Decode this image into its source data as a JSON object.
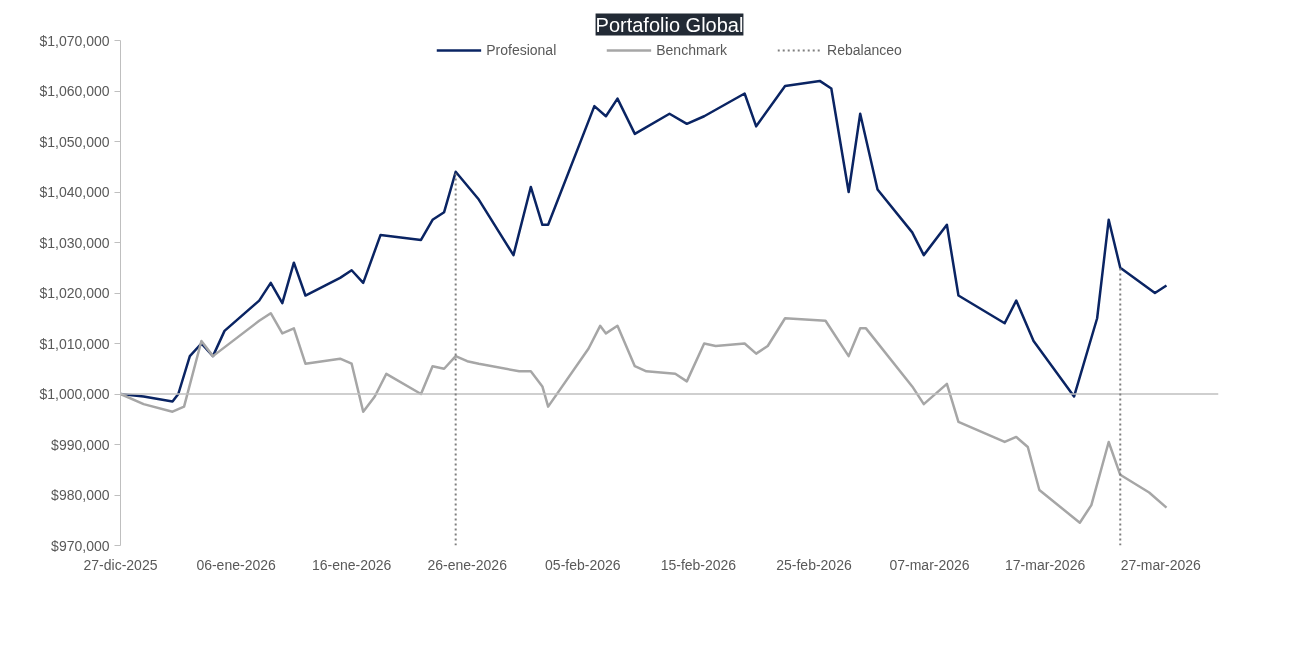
{
  "chart_data": {
    "type": "line",
    "title": "Portafolio Global",
    "xlim": [
      "2025-12-27",
      "2026-04-01"
    ],
    "xticks": [
      {
        "value": "2025-12-27",
        "label": "27-dic-2025"
      },
      {
        "value": "2026-01-06",
        "label": "06-ene-2026"
      },
      {
        "value": "2026-01-16",
        "label": "16-ene-2026"
      },
      {
        "value": "2026-01-26",
        "label": "26-ene-2026"
      },
      {
        "value": "2026-02-05",
        "label": "05-feb-2026"
      },
      {
        "value": "2026-02-15",
        "label": "15-feb-2026"
      },
      {
        "value": "2026-02-25",
        "label": "25-feb-2026"
      },
      {
        "value": "2026-03-07",
        "label": "07-mar-2026"
      },
      {
        "value": "2026-03-17",
        "label": "17-mar-2026"
      },
      {
        "value": "2026-03-27",
        "label": "27-mar-2026"
      }
    ],
    "ylim": [
      970000,
      1070000
    ],
    "yticks": [
      {
        "value": 970000,
        "label": "$970,000"
      },
      {
        "value": 980000,
        "label": "$980,000"
      },
      {
        "value": 990000,
        "label": "$990,000"
      },
      {
        "value": 1000000,
        "label": "$1,000,000"
      },
      {
        "value": 1010000,
        "label": "$1,010,000"
      },
      {
        "value": 1020000,
        "label": "$1,020,000"
      },
      {
        "value": 1030000,
        "label": "$1,030,000"
      },
      {
        "value": 1040000,
        "label": "$1,040,000"
      },
      {
        "value": 1050000,
        "label": "$1,050,000"
      },
      {
        "value": 1060000,
        "label": "$1,060,000"
      },
      {
        "value": 1070000,
        "label": "$1,070,000"
      }
    ],
    "grid": false,
    "legend": "top",
    "marker": "none",
    "line_style": "solid",
    "series": [
      {
        "name": "Profesional",
        "color": "#0a2463",
        "x": [
          "2025-12-27",
          "2025-12-29",
          "2025-12-31T12:00",
          "2026-01-01",
          "2026-01-02",
          "2026-01-03",
          "2026-01-04",
          "2026-01-05",
          "2026-01-08",
          "2026-01-09",
          "2026-01-10",
          "2026-01-11",
          "2026-01-12",
          "2026-01-15",
          "2026-01-16",
          "2026-01-17",
          "2026-01-18T12:00",
          "2026-01-22",
          "2026-01-23",
          "2026-01-24",
          "2026-01-25",
          "2026-01-27",
          "2026-01-30",
          "2026-01-31T12:00",
          "2026-02-01T12:00",
          "2026-02-02",
          "2026-02-06",
          "2026-02-07",
          "2026-02-08",
          "2026-02-09T12:00",
          "2026-02-12T12:00",
          "2026-02-14",
          "2026-02-15T12:00",
          "2026-02-19",
          "2026-02-20",
          "2026-02-22T12:00",
          "2026-02-25T12:00",
          "2026-02-26T12:00",
          "2026-02-28",
          "2026-03-01",
          "2026-03-02T12:00",
          "2026-03-05T12:00",
          "2026-03-06T12:00",
          "2026-03-08T12:00",
          "2026-03-09T12:00",
          "2026-03-13T12:00",
          "2026-03-14T12:00",
          "2026-03-16",
          "2026-03-19T12:00",
          "2026-03-21T12:00",
          "2026-03-22T12:00",
          "2026-03-23T12:00",
          "2026-03-26T12:00",
          "2026-03-27T12:00"
        ],
        "values": [
          1000000,
          999500,
          998500,
          1000000,
          1007500,
          1010000,
          1007500,
          1012500,
          1018500,
          1022000,
          1018000,
          1026000,
          1019500,
          1023000,
          1024500,
          1022000,
          1031500,
          1030500,
          1034500,
          1036000,
          1044000,
          1038500,
          1027500,
          1041000,
          1033500,
          1033500,
          1057000,
          1055000,
          1058500,
          1051500,
          1055500,
          1053500,
          1055000,
          1059500,
          1053000,
          1061000,
          1062000,
          1060500,
          1040000,
          1055500,
          1040500,
          1032000,
          1027500,
          1033500,
          1019500,
          1014000,
          1018500,
          1010500,
          999500,
          1015000,
          1034500,
          1025000,
          1020000,
          1021500
        ]
      },
      {
        "name": "Benchmark",
        "color": "#a6a6a6",
        "x": [
          "2025-12-27",
          "2025-12-29",
          "2025-12-31T12:00",
          "2026-01-01T12:00",
          "2026-01-03",
          "2026-01-04",
          "2026-01-08",
          "2026-01-09",
          "2026-01-10",
          "2026-01-11",
          "2026-01-12",
          "2026-01-15",
          "2026-01-16",
          "2026-01-17",
          "2026-01-18",
          "2026-01-19",
          "2026-01-22",
          "2026-01-23",
          "2026-01-24",
          "2026-01-25",
          "2026-01-26",
          "2026-01-27",
          "2026-01-30T12:00",
          "2026-01-31T12:00",
          "2026-02-01T12:00",
          "2026-02-02",
          "2026-02-05T12:00",
          "2026-02-06T12:00",
          "2026-02-07",
          "2026-02-08",
          "2026-02-09T12:00",
          "2026-02-10T12:00",
          "2026-02-13",
          "2026-02-14",
          "2026-02-15T12:00",
          "2026-02-16T12:00",
          "2026-02-19",
          "2026-02-20",
          "2026-02-21",
          "2026-02-22T12:00",
          "2026-02-26",
          "2026-02-28",
          "2026-03-01",
          "2026-03-01T12:00",
          "2026-03-05T12:00",
          "2026-03-06T12:00",
          "2026-03-08T12:00",
          "2026-03-09T12:00",
          "2026-03-13T12:00",
          "2026-03-14T12:00",
          "2026-03-15T12:00",
          "2026-03-16T12:00",
          "2026-03-20",
          "2026-03-21",
          "2026-03-22T12:00",
          "2026-03-23T12:00",
          "2026-03-26",
          "2026-03-27T12:00"
        ],
        "values": [
          1000000,
          998000,
          996500,
          997500,
          1010500,
          1007500,
          1014500,
          1016000,
          1012000,
          1013000,
          1006000,
          1007000,
          1006000,
          996500,
          999500,
          1004000,
          1000000,
          1005500,
          1005000,
          1007500,
          1006500,
          1006000,
          1004500,
          1004500,
          1001500,
          997500,
          1009000,
          1013500,
          1012000,
          1013500,
          1005500,
          1004500,
          1004000,
          1002500,
          1010000,
          1009500,
          1010000,
          1008000,
          1009500,
          1015000,
          1014500,
          1007500,
          1013000,
          1013000,
          1001500,
          998000,
          1002000,
          994500,
          990500,
          991500,
          989500,
          981000,
          974500,
          978000,
          990500,
          984000,
          980500,
          977500
        ]
      }
    ],
    "ref_lines": [
      {
        "axis": "y",
        "value": 1000000,
        "color": "#bfbfbf",
        "line_style": "solid"
      },
      {
        "axis": "x",
        "value": "2026-01-25",
        "label": "Rebalanceo",
        "color": "#7f7f7f",
        "line_style": "dotted"
      },
      {
        "axis": "x",
        "value": "2026-03-23T12:00",
        "color": "#7f7f7f",
        "line_style": "dotted"
      }
    ]
  }
}
